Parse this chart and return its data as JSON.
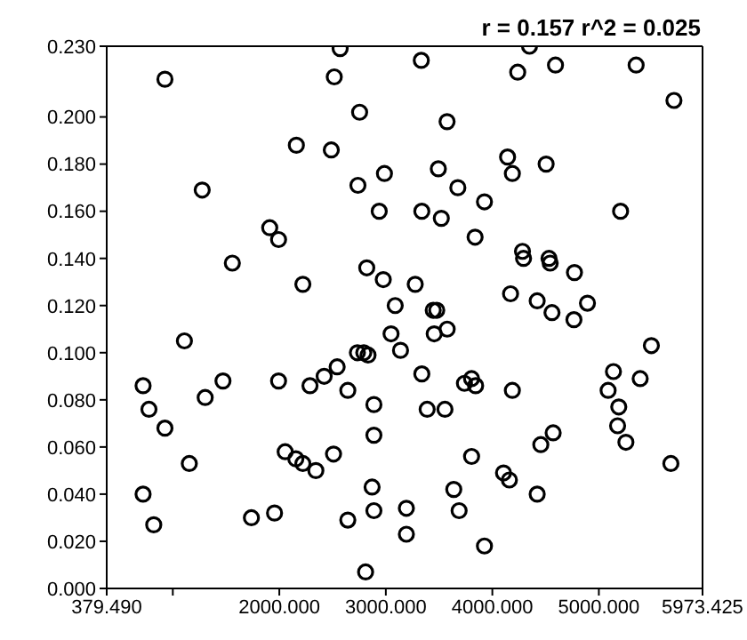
{
  "chart_data": {
    "type": "scatter",
    "annotations": [
      "r = 0.157  r^2 = 0.025"
    ],
    "x": [
      2571,
      926,
      2516,
      2754,
      2160,
      2488,
      2987,
      2738,
      1276,
      2938,
      1910,
      1993,
      1559,
      2821,
      2976,
      2221,
      3088,
      3333,
      4349,
      4238,
      4593,
      5350,
      5705,
      3575,
      4143,
      4505,
      3493,
      4188,
      3676,
      3926,
      3338,
      3521,
      5204,
      3838,
      4283,
      4293,
      4532,
      4543,
      4771,
      3276,
      4171,
      4421,
      4893,
      3445,
      3478,
      4560,
      4766,
      3576,
      3454,
      3049,
      3138,
      5493,
      3338,
      3738,
      3805,
      3843,
      4188,
      5137,
      5388,
      5087,
      5187,
      3388,
      3555,
      5176,
      5254,
      4571,
      4455,
      5676,
      3805,
      4105,
      4160,
      4421,
      3638,
      3193,
      3688,
      3926,
      1109,
      721,
      776,
      926,
      1304,
      1471,
      1993,
      2288,
      2421,
      2543,
      2733,
      2793,
      2833,
      2643,
      2888,
      2888,
      1155,
      2055,
      2155,
      2221,
      2343,
      2509,
      2871,
      2888,
      721,
      821,
      1738,
      1955,
      2643,
      2810,
      3193
    ],
    "values": [
      0.229,
      0.216,
      0.217,
      0.202,
      0.188,
      0.186,
      0.176,
      0.171,
      0.169,
      0.16,
      0.153,
      0.148,
      0.138,
      0.136,
      0.131,
      0.129,
      0.12,
      0.224,
      0.23,
      0.219,
      0.222,
      0.222,
      0.207,
      0.198,
      0.183,
      0.18,
      0.178,
      0.176,
      0.17,
      0.164,
      0.16,
      0.157,
      0.16,
      0.149,
      0.143,
      0.14,
      0.14,
      0.138,
      0.134,
      0.129,
      0.125,
      0.122,
      0.121,
      0.118,
      0.118,
      0.117,
      0.114,
      0.11,
      0.108,
      0.108,
      0.101,
      0.103,
      0.091,
      0.087,
      0.089,
      0.086,
      0.084,
      0.092,
      0.089,
      0.084,
      0.077,
      0.076,
      0.076,
      0.069,
      0.062,
      0.066,
      0.061,
      0.053,
      0.056,
      0.049,
      0.046,
      0.04,
      0.042,
      0.034,
      0.033,
      0.018,
      0.105,
      0.086,
      0.076,
      0.068,
      0.081,
      0.088,
      0.088,
      0.086,
      0.09,
      0.094,
      0.1,
      0.1,
      0.099,
      0.084,
      0.078,
      0.065,
      0.053,
      0.058,
      0.055,
      0.053,
      0.05,
      0.057,
      0.043,
      0.033,
      0.04,
      0.027,
      0.03,
      0.032,
      0.029,
      0.007,
      0.023
    ],
    "color": "#000000",
    "marker": "circle",
    "xlim": [
      379.49,
      5973.425
    ],
    "xticks": [
      {
        "value": 379.49,
        "label": "379.490"
      },
      {
        "value": 1000,
        "label": null
      },
      {
        "value": 2000,
        "label": "2000.000"
      },
      {
        "value": 3000,
        "label": "3000.000"
      },
      {
        "value": 4000,
        "label": "4000.000"
      },
      {
        "value": 5000,
        "label": "5000.000"
      },
      {
        "value": 5973.425,
        "label": "5973.425"
      }
    ],
    "ylim": [
      0,
      0.23
    ],
    "yticks": [
      {
        "value": 0,
        "label": "0.000"
      },
      {
        "value": 0.02,
        "label": "0.020"
      },
      {
        "value": 0.04,
        "label": "0.040"
      },
      {
        "value": 0.06,
        "label": "0.060"
      },
      {
        "value": 0.08,
        "label": "0.080"
      },
      {
        "value": 0.1,
        "label": "0.100"
      },
      {
        "value": 0.12,
        "label": "0.120"
      },
      {
        "value": 0.14,
        "label": "0.140"
      },
      {
        "value": 0.16,
        "label": "0.160"
      },
      {
        "value": 0.18,
        "label": "0.180"
      },
      {
        "value": 0.2,
        "label": "0.200"
      },
      {
        "value": 0.23,
        "label": "0.230"
      }
    ]
  }
}
